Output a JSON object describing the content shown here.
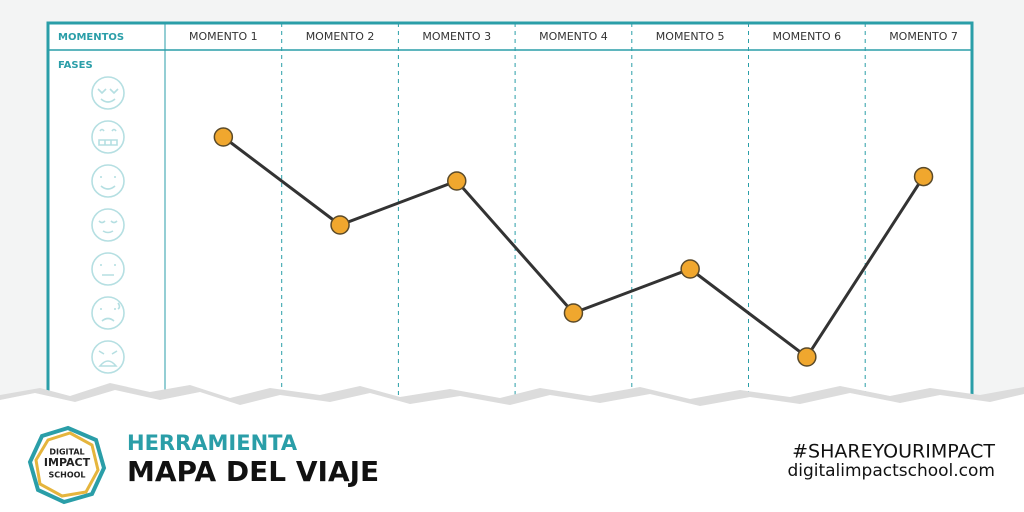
{
  "chart_data": {
    "type": "line",
    "x_axis_label": "MOMENTOS",
    "y_axis_label": "FASES",
    "categories": [
      "MOMENTO 1",
      "MOMENTO 2",
      "MOMENTO 3",
      "MOMENTO 4",
      "MOMENTO 5",
      "MOMENTO 6",
      "MOMENTO 7"
    ],
    "values": [
      6,
      4,
      5,
      2,
      3,
      1,
      5.1
    ],
    "ylim": [
      1,
      7
    ],
    "color": "#f0a72e",
    "line_color": "#333333",
    "frame_color": "#2a9ea8"
  },
  "logo": [
    "DIGITAL",
    "IMPACT",
    "SCHOOL"
  ],
  "footer": {
    "kicker": "HERRAMIENTA",
    "title": "MAPA DEL VIAJE",
    "hashtag": "#SHAREYOURIMPACT",
    "url": "digitalimpactschool.com"
  }
}
